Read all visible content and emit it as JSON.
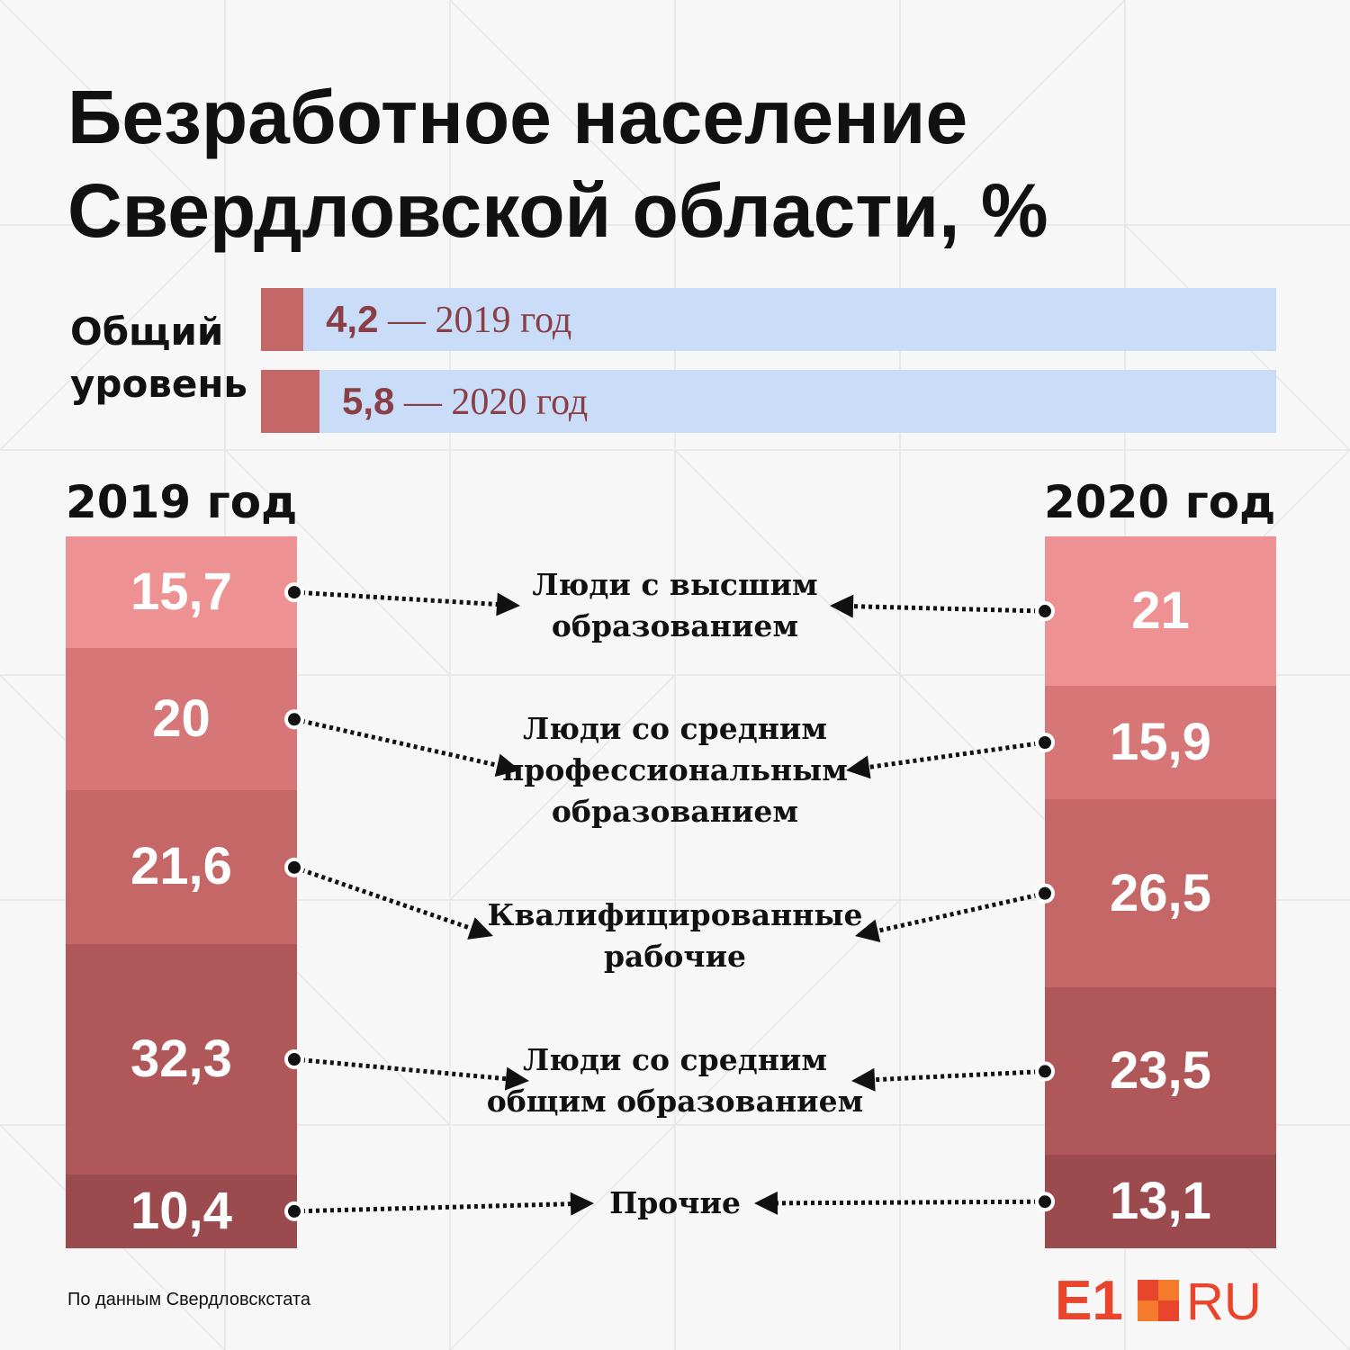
{
  "title_line1": "Безработное население",
  "title_line2": "Свердловской области, %",
  "overall": {
    "label_line1": "Общий",
    "label_line2": "уровень",
    "rows": [
      {
        "value": 4.2,
        "value_label": "4,2",
        "suffix": " — 2019 год"
      },
      {
        "value": 5.8,
        "value_label": "5,8",
        "suffix": " — 2020 год"
      }
    ]
  },
  "chart_data": {
    "type": "bar",
    "stacked": true,
    "categories": [
      "Люди с высшим образованием",
      "Люди со средним профессиональным образованием",
      "Квалифицированные рабочие",
      "Люди со средним общим образованием",
      "Прочие"
    ],
    "series": [
      {
        "name": "2019 год",
        "values": [
          15.7,
          20,
          21.6,
          32.3,
          10.4
        ],
        "labels": [
          "15,7",
          "20",
          "21,6",
          "32,3",
          "10,4"
        ]
      },
      {
        "name": "2020 год",
        "values": [
          21,
          15.9,
          26.5,
          23.5,
          13.1
        ],
        "labels": [
          "21",
          "15,9",
          "26,5",
          "23,5",
          "13,1"
        ]
      }
    ]
  },
  "category_lines": [
    [
      "Люди с высшим",
      "образованием"
    ],
    [
      "Люди со средним",
      "профессиональным",
      "образованием"
    ],
    [
      "Квалифицированные",
      "рабочие"
    ],
    [
      "Люди со средним",
      "общим образованием"
    ],
    [
      "Прочие"
    ]
  ],
  "colors": {
    "segments": [
      "#ee9193",
      "#d67677",
      "#c56667",
      "#b05859",
      "#9b4a4d"
    ],
    "overall_fill": "#c56667",
    "overall_track": "#c9dcf8",
    "overall_text": "#8a3f46",
    "logo_red": "#e8452c",
    "logo_orange": "#f57a2a"
  },
  "source": "По данным Свердловскстата",
  "logo": {
    "brand": "E1",
    "suffix": "RU"
  }
}
